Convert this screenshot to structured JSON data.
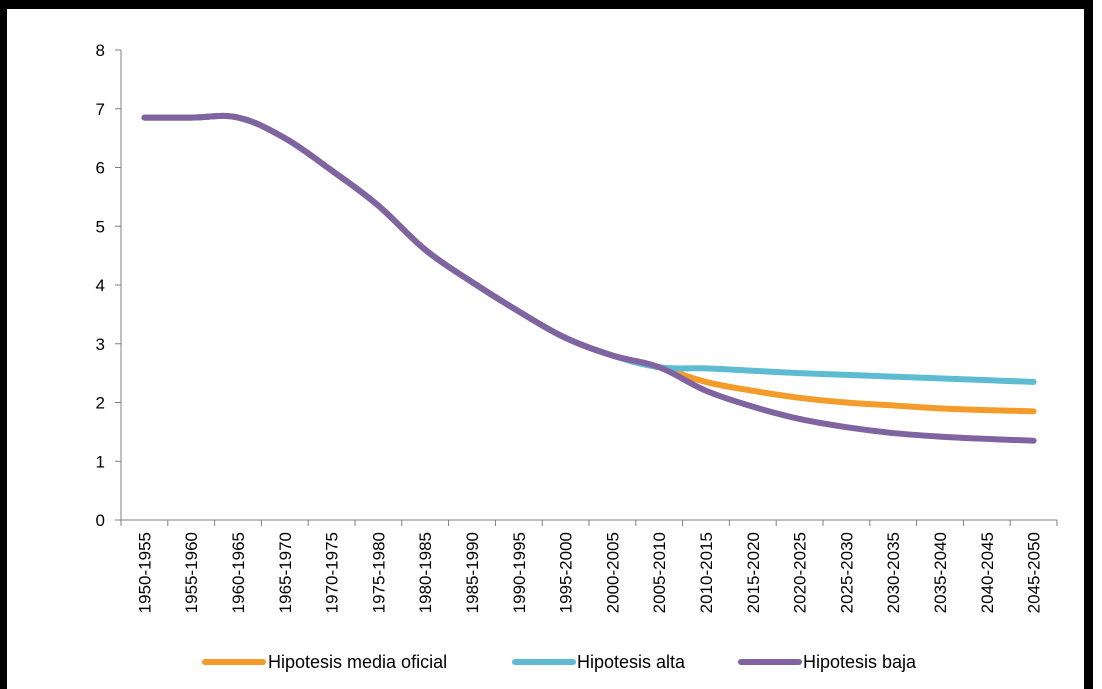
{
  "chart_data": {
    "type": "line",
    "title": "",
    "xlabel": "",
    "ylabel": "",
    "ylim": [
      0,
      8
    ],
    "yticks": [
      0,
      1,
      2,
      3,
      4,
      5,
      6,
      7,
      8
    ],
    "grid": false,
    "legend_position": "bottom",
    "categories": [
      "1950-1955",
      "1955-1960",
      "1960-1965",
      "1965-1970",
      "1970-1975",
      "1975-1980",
      "1980-1985",
      "1985-1990",
      "1990-1995",
      "1995-2000",
      "2000-2005",
      "2005-2010",
      "2010-2015",
      "2015-2020",
      "2020-2025",
      "2025-2030",
      "2030-2035",
      "2035-2040",
      "2040-2045",
      "2045-2050"
    ],
    "series": [
      {
        "name": "Hipotesis media oficial",
        "color": "#F39C2C",
        "values": [
          6.85,
          6.85,
          6.85,
          6.5,
          5.95,
          5.35,
          4.6,
          4.05,
          3.55,
          3.1,
          2.8,
          2.6,
          2.35,
          2.2,
          2.08,
          2.0,
          1.95,
          1.9,
          1.87,
          1.85
        ]
      },
      {
        "name": "Hipotesis alta",
        "color": "#5DBCD2",
        "values": [
          6.85,
          6.85,
          6.85,
          6.5,
          5.95,
          5.35,
          4.6,
          4.05,
          3.55,
          3.1,
          2.8,
          2.6,
          2.58,
          2.54,
          2.5,
          2.47,
          2.44,
          2.41,
          2.38,
          2.35
        ]
      },
      {
        "name": "Hipotesis baja",
        "color": "#8064A2",
        "values": [
          6.85,
          6.85,
          6.85,
          6.5,
          5.95,
          5.35,
          4.6,
          4.05,
          3.55,
          3.1,
          2.8,
          2.6,
          2.2,
          1.93,
          1.72,
          1.58,
          1.48,
          1.42,
          1.38,
          1.35
        ]
      }
    ]
  }
}
